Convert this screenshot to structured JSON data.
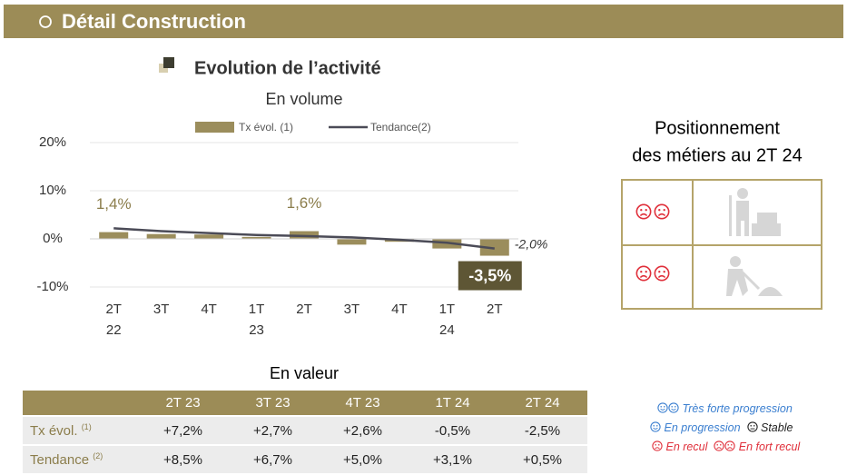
{
  "header": {
    "title": "Détail Construction"
  },
  "chart_data": {
    "type": "bar",
    "title": "Evolution de l’activité",
    "subtitle": "En volume",
    "categories": [
      [
        "2T",
        "22"
      ],
      [
        "3T"
      ],
      [
        "4T"
      ],
      [
        "1T",
        "23"
      ],
      [
        "2T"
      ],
      [
        "3T"
      ],
      [
        "4T"
      ],
      [
        "1T",
        "24"
      ],
      [
        "2T"
      ]
    ],
    "series": [
      {
        "name": "Tx évol. (1)",
        "type": "bar",
        "color": "#9b8d5c",
        "values": [
          1.4,
          1.0,
          0.9,
          0.4,
          1.6,
          -1.2,
          -0.6,
          -2.0,
          -3.5
        ],
        "value_labels": [
          "1,4%",
          null,
          null,
          null,
          "1,6%",
          null,
          null,
          null,
          "-3,5%"
        ]
      },
      {
        "name": "Tendance(2)",
        "type": "line",
        "color": "#4b4b57",
        "values": [
          2.2,
          1.6,
          1.2,
          0.8,
          0.6,
          0.3,
          -0.2,
          -0.8,
          -2.0
        ],
        "value_labels": [
          null,
          null,
          null,
          null,
          null,
          null,
          null,
          null,
          "-2,0%"
        ]
      }
    ],
    "ylim": [
      -12,
      20
    ],
    "yticks": [
      {
        "value": -10,
        "label": "-10%"
      },
      {
        "value": 0,
        "label": "0%"
      },
      {
        "value": 10,
        "label": "10%"
      },
      {
        "value": 20,
        "label": "20%"
      }
    ],
    "grid": true
  },
  "positioning": {
    "title": [
      "Positionnement",
      "des métiers au 2T 24"
    ]
  },
  "table": {
    "title": "En valeur",
    "header": [
      "2T 23",
      "3T 23",
      "4T 23",
      "1T 24",
      "2T 24"
    ],
    "rows": [
      {
        "label": "Tx évol.",
        "note": "(1)",
        "cells": [
          "+7,2%",
          "+2,7%",
          "+2,6%",
          "-0,5%",
          "-2,5%"
        ]
      },
      {
        "label": "Tendance",
        "note": "(2)",
        "cells": [
          "+8,5%",
          "+6,7%",
          "+5,0%",
          "+3,1%",
          "+0,5%"
        ]
      }
    ]
  },
  "legend": [
    "Très forte progression",
    "En progression",
    "Stable",
    "En recul",
    "En fort recul"
  ]
}
